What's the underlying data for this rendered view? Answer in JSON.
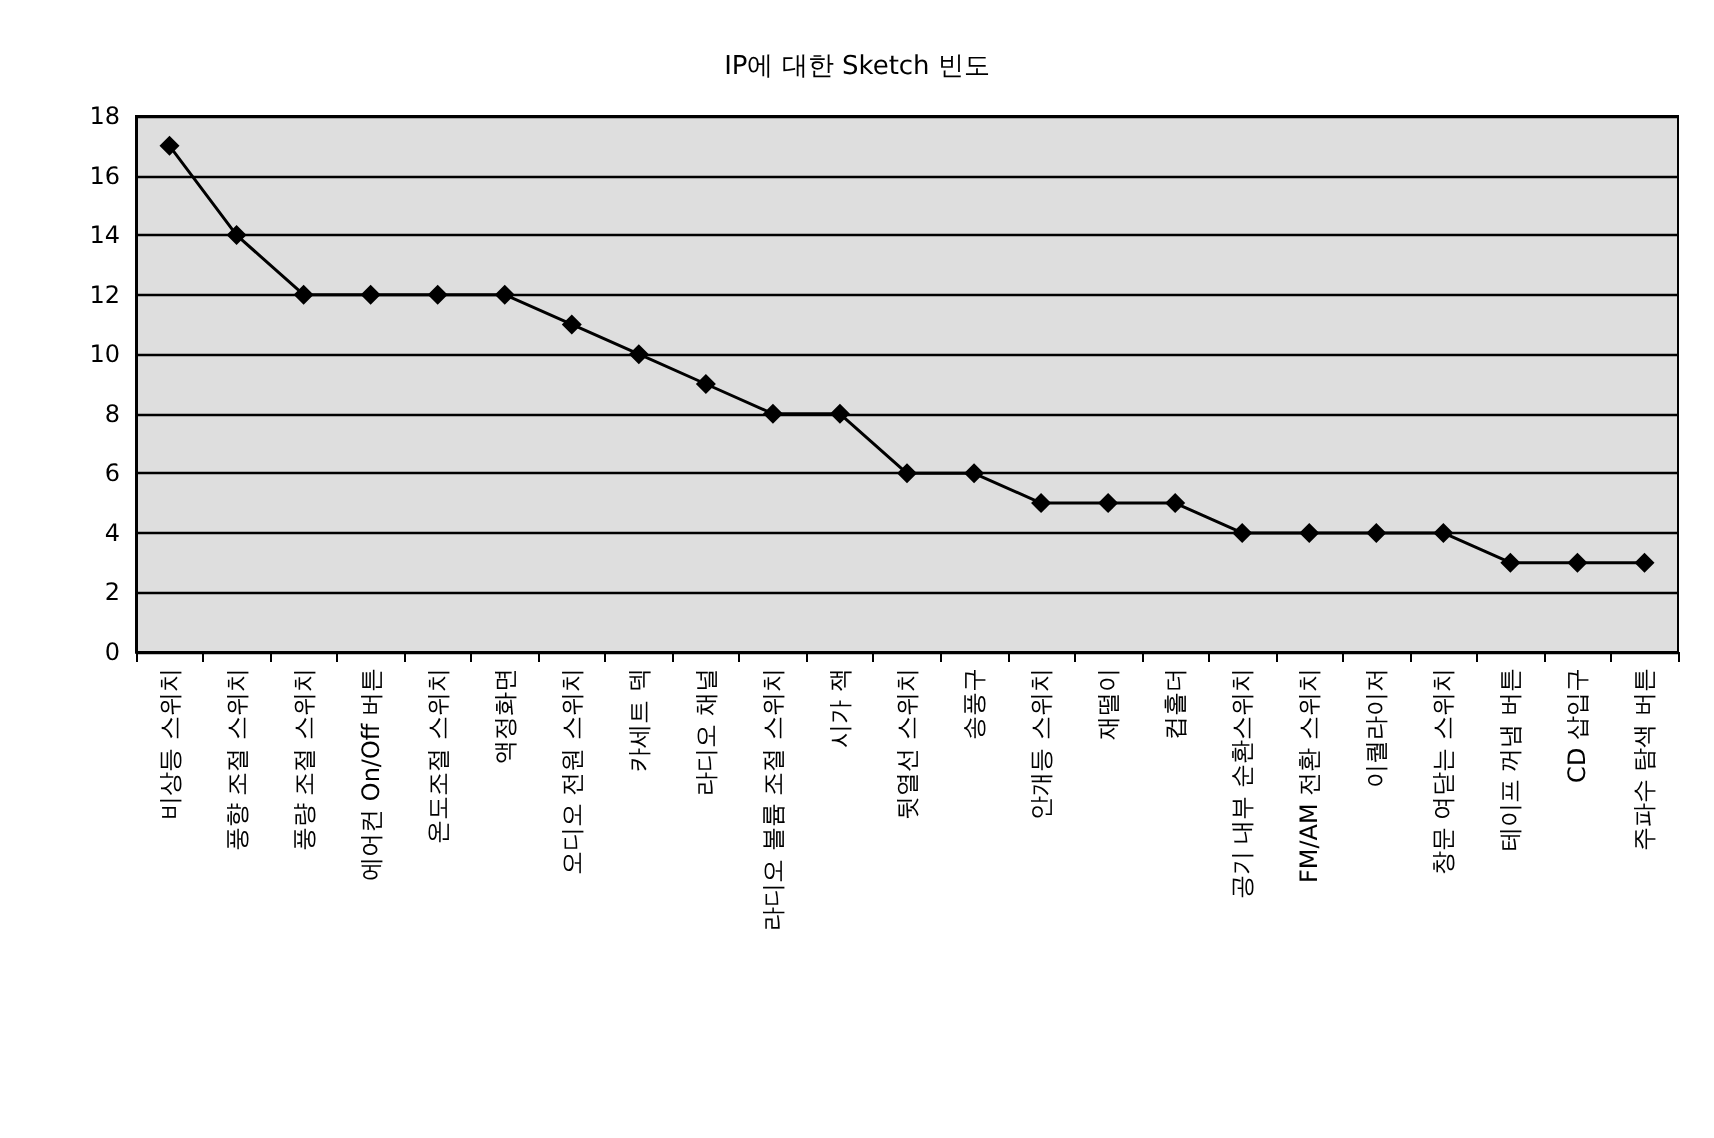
{
  "chart_data": {
    "type": "line",
    "title": "IP에 대한 Sketch 빈도",
    "categories": [
      "비상등 스위치",
      "풍향 조절 스위치",
      "풍량 조절 스위치",
      "에어컨 On/Off 버튼",
      "온도조절 스위치",
      "액정화면",
      "오디오 전원 스위치",
      "카세트 덱",
      "라디오 채널",
      "라디오 볼륨 조절 스위치",
      "시가 잭",
      "뒷열선 스위치",
      "송풍구",
      "안개등 스위치",
      "재떨이",
      "컵홀더",
      "공기 내부 순환스위치",
      "FM/AM 전환 스위치",
      "이퀄라이저",
      "창문 여닫는 스위치",
      "테이프 꺼냄 버튼",
      "CD 삽입구",
      "주파수 탐색 버튼"
    ],
    "series": [
      {
        "color": "#000000",
        "values": [
          17,
          14,
          12,
          12,
          12,
          12,
          11,
          10,
          9,
          8,
          8,
          6,
          6,
          5,
          5,
          5,
          4,
          4,
          4,
          4,
          3,
          3,
          3
        ]
      }
    ],
    "ylim": [
      0,
      18
    ],
    "yticks": [
      0,
      2,
      4,
      6,
      8,
      10,
      12,
      14,
      16,
      18
    ],
    "grid": "y",
    "marker": "diamond",
    "line_style": "solid"
  }
}
